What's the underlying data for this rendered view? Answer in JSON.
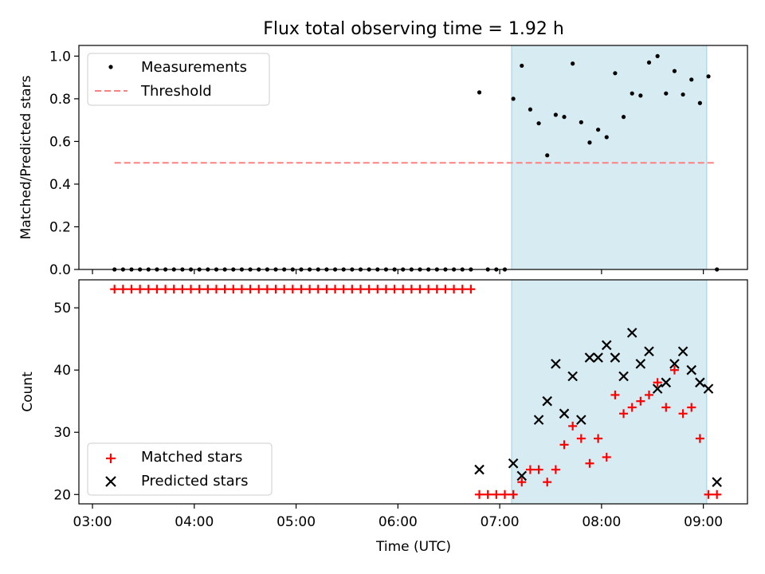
{
  "title": "Flux total observing time = 1.92 h",
  "chart_data": [
    {
      "type": "scatter",
      "name": "ratio-panel",
      "ylabel": "Matched/Predicted stars",
      "xlabel": "",
      "xlim": [
        "02:52",
        "09:26"
      ],
      "ylim": [
        0.0,
        1.05
      ],
      "yticks": [
        "0.0",
        "0.2",
        "0.4",
        "0.6",
        "0.8",
        "1.0"
      ],
      "shaded_interval": {
        "start": "07:07",
        "end": "09:02",
        "color": "#add8e6"
      },
      "legend": {
        "position": "top-left",
        "entries": [
          "Measurements",
          "Threshold"
        ]
      },
      "threshold": {
        "name": "Threshold",
        "y": 0.5,
        "x_range": [
          "03:13",
          "09:07"
        ],
        "color": "#ff8080",
        "style": "dashed"
      },
      "series": [
        {
          "name": "Measurements",
          "marker": "dot",
          "color": "#000000",
          "points": [
            [
              "03:13",
              0
            ],
            [
              "03:18",
              0
            ],
            [
              "03:23",
              0
            ],
            [
              "03:28",
              0
            ],
            [
              "03:33",
              0
            ],
            [
              "03:38",
              0
            ],
            [
              "03:43",
              0
            ],
            [
              "03:48",
              0
            ],
            [
              "03:53",
              0
            ],
            [
              "03:58",
              0
            ],
            [
              "04:03",
              0
            ],
            [
              "04:08",
              0
            ],
            [
              "04:13",
              0
            ],
            [
              "04:18",
              0
            ],
            [
              "04:23",
              0
            ],
            [
              "04:28",
              0
            ],
            [
              "04:33",
              0
            ],
            [
              "04:38",
              0
            ],
            [
              "04:43",
              0
            ],
            [
              "04:48",
              0
            ],
            [
              "04:53",
              0
            ],
            [
              "04:58",
              0
            ],
            [
              "05:03",
              0
            ],
            [
              "05:08",
              0
            ],
            [
              "05:13",
              0
            ],
            [
              "05:18",
              0
            ],
            [
              "05:23",
              0
            ],
            [
              "05:28",
              0
            ],
            [
              "05:33",
              0
            ],
            [
              "05:38",
              0
            ],
            [
              "05:43",
              0
            ],
            [
              "05:48",
              0
            ],
            [
              "05:53",
              0
            ],
            [
              "05:58",
              0
            ],
            [
              "06:03",
              0
            ],
            [
              "06:08",
              0
            ],
            [
              "06:13",
              0
            ],
            [
              "06:18",
              0
            ],
            [
              "06:23",
              0
            ],
            [
              "06:28",
              0
            ],
            [
              "06:33",
              0
            ],
            [
              "06:38",
              0
            ],
            [
              "06:43",
              0
            ],
            [
              "06:48",
              0.83
            ],
            [
              "06:53",
              0
            ],
            [
              "06:58",
              0
            ],
            [
              "07:03",
              0
            ],
            [
              "07:08",
              0.8
            ],
            [
              "07:13",
              0.955
            ],
            [
              "07:18",
              0.75
            ],
            [
              "07:23",
              0.685
            ],
            [
              "07:28",
              0.535
            ],
            [
              "07:33",
              0.725
            ],
            [
              "07:38",
              0.715
            ],
            [
              "07:43",
              0.965
            ],
            [
              "07:48",
              0.69
            ],
            [
              "07:53",
              0.595
            ],
            [
              "07:58",
              0.655
            ],
            [
              "08:03",
              0.62
            ],
            [
              "08:08",
              0.92
            ],
            [
              "08:13",
              0.715
            ],
            [
              "08:18",
              0.825
            ],
            [
              "08:23",
              0.815
            ],
            [
              "08:28",
              0.97
            ],
            [
              "08:33",
              1.0
            ],
            [
              "08:38",
              0.825
            ],
            [
              "08:43",
              0.93
            ],
            [
              "08:48",
              0.82
            ],
            [
              "08:53",
              0.89
            ],
            [
              "08:58",
              0.78
            ],
            [
              "09:03",
              0.905
            ],
            [
              "09:08",
              0
            ]
          ]
        }
      ]
    },
    {
      "type": "scatter",
      "name": "count-panel",
      "ylabel": "Count",
      "xlabel": "Time (UTC)",
      "xlim": [
        "02:52",
        "09:26"
      ],
      "ylim": [
        18.5,
        54.5
      ],
      "xticks": [
        "03:00",
        "04:00",
        "05:00",
        "06:00",
        "07:00",
        "08:00",
        "09:00"
      ],
      "yticks": [
        "20",
        "30",
        "40",
        "50"
      ],
      "shaded_interval": {
        "start": "07:07",
        "end": "09:02",
        "color": "#add8e6"
      },
      "legend": {
        "position": "bottom-left",
        "entries": [
          "Matched stars",
          "Predicted stars"
        ]
      },
      "series": [
        {
          "name": "Matched stars",
          "marker": "plus",
          "color": "#ff0000",
          "points": [
            [
              "03:13",
              53
            ],
            [
              "03:18",
              53
            ],
            [
              "03:23",
              53
            ],
            [
              "03:28",
              53
            ],
            [
              "03:33",
              53
            ],
            [
              "03:38",
              53
            ],
            [
              "03:43",
              53
            ],
            [
              "03:48",
              53
            ],
            [
              "03:53",
              53
            ],
            [
              "03:58",
              53
            ],
            [
              "04:03",
              53
            ],
            [
              "04:08",
              53
            ],
            [
              "04:13",
              53
            ],
            [
              "04:18",
              53
            ],
            [
              "04:23",
              53
            ],
            [
              "04:28",
              53
            ],
            [
              "04:33",
              53
            ],
            [
              "04:38",
              53
            ],
            [
              "04:43",
              53
            ],
            [
              "04:48",
              53
            ],
            [
              "04:53",
              53
            ],
            [
              "04:58",
              53
            ],
            [
              "05:03",
              53
            ],
            [
              "05:08",
              53
            ],
            [
              "05:13",
              53
            ],
            [
              "05:18",
              53
            ],
            [
              "05:23",
              53
            ],
            [
              "05:28",
              53
            ],
            [
              "05:33",
              53
            ],
            [
              "05:38",
              53
            ],
            [
              "05:43",
              53
            ],
            [
              "05:48",
              53
            ],
            [
              "05:53",
              53
            ],
            [
              "05:58",
              53
            ],
            [
              "06:03",
              53
            ],
            [
              "06:08",
              53
            ],
            [
              "06:13",
              53
            ],
            [
              "06:18",
              53
            ],
            [
              "06:23",
              53
            ],
            [
              "06:28",
              53
            ],
            [
              "06:33",
              53
            ],
            [
              "06:38",
              53
            ],
            [
              "06:43",
              53
            ],
            [
              "06:48",
              20
            ],
            [
              "06:53",
              20
            ],
            [
              "06:58",
              20
            ],
            [
              "07:03",
              20
            ],
            [
              "07:08",
              20
            ],
            [
              "07:13",
              22
            ],
            [
              "07:18",
              24
            ],
            [
              "07:23",
              24
            ],
            [
              "07:28",
              22
            ],
            [
              "07:33",
              24
            ],
            [
              "07:38",
              28
            ],
            [
              "07:43",
              31
            ],
            [
              "07:48",
              29
            ],
            [
              "07:53",
              25
            ],
            [
              "07:58",
              29
            ],
            [
              "08:03",
              26
            ],
            [
              "08:08",
              36
            ],
            [
              "08:13",
              33
            ],
            [
              "08:18",
              34
            ],
            [
              "08:23",
              35
            ],
            [
              "08:28",
              36
            ],
            [
              "08:33",
              38
            ],
            [
              "08:38",
              34
            ],
            [
              "08:43",
              40
            ],
            [
              "08:48",
              33
            ],
            [
              "08:53",
              34
            ],
            [
              "08:58",
              29
            ],
            [
              "09:03",
              20
            ],
            [
              "09:08",
              20
            ]
          ]
        },
        {
          "name": "Predicted stars",
          "marker": "x",
          "color": "#000000",
          "points": [
            [
              "06:48",
              24
            ],
            [
              "07:08",
              25
            ],
            [
              "07:13",
              23
            ],
            [
              "07:23",
              32
            ],
            [
              "07:28",
              35
            ],
            [
              "07:33",
              41
            ],
            [
              "07:38",
              33
            ],
            [
              "07:43",
              39
            ],
            [
              "07:48",
              32
            ],
            [
              "07:53",
              42
            ],
            [
              "07:58",
              42
            ],
            [
              "08:03",
              44
            ],
            [
              "08:08",
              42
            ],
            [
              "08:13",
              39
            ],
            [
              "08:18",
              46
            ],
            [
              "08:23",
              41
            ],
            [
              "08:28",
              43
            ],
            [
              "08:33",
              37
            ],
            [
              "08:38",
              38
            ],
            [
              "08:43",
              41
            ],
            [
              "08:48",
              43
            ],
            [
              "08:53",
              40
            ],
            [
              "08:58",
              38
            ],
            [
              "09:03",
              37
            ],
            [
              "09:08",
              22
            ]
          ]
        }
      ]
    }
  ]
}
